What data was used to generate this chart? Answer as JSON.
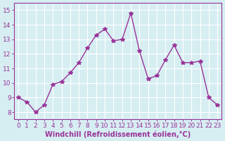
{
  "x": [
    0,
    1,
    2,
    3,
    4,
    5,
    6,
    7,
    8,
    9,
    10,
    11,
    12,
    13,
    14,
    15,
    16,
    17,
    18,
    19,
    20,
    21,
    22,
    23
  ],
  "y": [
    9.0,
    8.7,
    8.0,
    8.5,
    9.9,
    10.1,
    10.7,
    11.4,
    12.4,
    13.3,
    13.7,
    12.9,
    13.0,
    14.8,
    12.2,
    10.3,
    10.5,
    11.6,
    12.6,
    11.4,
    11.4,
    11.5,
    9.0,
    8.5
  ],
  "line_color": "#993399",
  "marker": "*",
  "marker_size": 4,
  "xlabel": "Windchill (Refroidissement éolien,°C)",
  "ylabel_ticks": [
    8,
    9,
    10,
    11,
    12,
    13,
    14,
    15
  ],
  "ylim": [
    7.5,
    15.5
  ],
  "xlim": [
    -0.5,
    23.5
  ],
  "bg_color": "#d6eef2",
  "grid_color": "#ffffff",
  "xlabel_fontsize": 7,
  "tick_fontsize": 6.5,
  "line_width": 1.0
}
